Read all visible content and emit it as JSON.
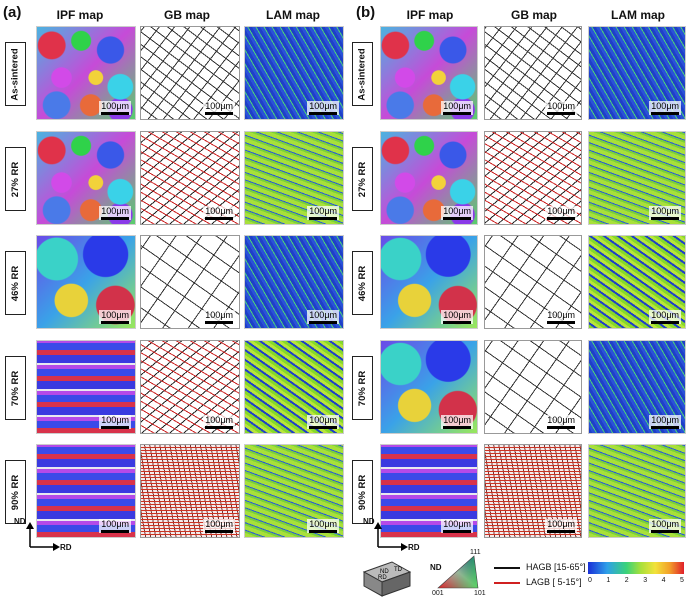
{
  "panels": [
    {
      "letter": "(a)",
      "columns": [
        "IPF  map",
        "GB map",
        "LAM map"
      ]
    },
    {
      "letter": "(b)",
      "columns": [
        "IPF  map",
        "GB map",
        "LAM map"
      ]
    }
  ],
  "rows": [
    "As-sintered",
    "27% RR",
    "46% RR",
    "70% RR",
    "90% RR"
  ],
  "scale_label": "100μm",
  "axes": {
    "nd": "ND",
    "rd": "RD"
  },
  "triad": {
    "nd": "ND",
    "td": "TD",
    "rd": "RD"
  },
  "ipf_key": {
    "title": "ND",
    "c111": "111",
    "c001": "001",
    "c101": "101"
  },
  "gb_legend": [
    {
      "label": "HAGB  [15-65°]",
      "color": "#111111"
    },
    {
      "label": "LAGB  [ 5-15°]",
      "color": "#d02020"
    }
  ],
  "lam_scale": {
    "ticks": [
      "0",
      "1",
      "2",
      "3",
      "4",
      "5"
    ]
  }
}
